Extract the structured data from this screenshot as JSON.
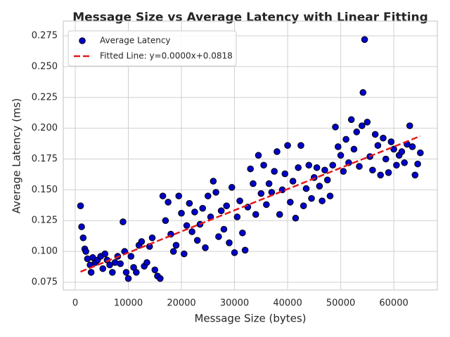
{
  "chart_data": {
    "type": "scatter",
    "title": "Message Size vs Average Latency with Linear Fitting",
    "x_label": "Message Size (bytes)",
    "y_label": "Average Latency (ms)",
    "xlim": [
      -2250,
      68200
    ],
    "ylim": [
      0.0687,
      0.287
    ],
    "xticks": [
      0,
      10000,
      20000,
      30000,
      40000,
      50000,
      60000
    ],
    "yticks": [
      0.075,
      {
        "value": 0.1,
        "label": "0.100"
      },
      0.125,
      {
        "value": 0.15,
        "label": "0.150"
      },
      0.175,
      {
        "value": 0.2,
        "label": "0.200"
      },
      0.225,
      {
        "value": 0.25,
        "label": "0.250"
      },
      0.275
    ],
    "grid": true,
    "legend": "upper left",
    "series": [
      {
        "name": "Average Latency",
        "type": "scatter",
        "color": "#0000cc",
        "x": [
          1000,
          1200,
          1500,
          1800,
          2000,
          2300,
          2800,
          3000,
          3300,
          3800,
          4200,
          4800,
          5200,
          5600,
          6000,
          6500,
          7000,
          7500,
          8000,
          8500,
          9000,
          9300,
          9600,
          10000,
          10500,
          11000,
          11500,
          12000,
          12500,
          13000,
          13500,
          14000,
          14500,
          15000,
          15500,
          16000,
          16500,
          17000,
          17500,
          18000,
          18500,
          19000,
          19500,
          20000,
          20500,
          21000,
          21500,
          22000,
          22500,
          23000,
          23500,
          24000,
          24500,
          25000,
          25500,
          26000,
          26500,
          27000,
          27500,
          28000,
          28500,
          29000,
          29500,
          30000,
          30500,
          31000,
          31500,
          32000,
          32500,
          33000,
          33500,
          34000,
          34500,
          35000,
          35500,
          36000,
          36500,
          37000,
          37500,
          38000,
          38500,
          39000,
          39500,
          40000,
          40500,
          41000,
          41500,
          42000,
          42500,
          43000,
          43500,
          44000,
          44500,
          45000,
          45500,
          46000,
          46500,
          47000,
          47500,
          48000,
          48500,
          49000,
          49500,
          50000,
          50500,
          51000,
          51500,
          52000,
          52500,
          53000,
          53500,
          54000,
          54200,
          54500,
          55000,
          55500,
          56000,
          56500,
          57000,
          57500,
          58000,
          58500,
          59000,
          59500,
          60000,
          60500,
          61000,
          61500,
          62000,
          62500,
          63000,
          63500,
          64000,
          64500,
          65000
        ],
        "values": [
          0.137,
          0.12,
          0.111,
          0.102,
          0.1,
          0.094,
          0.089,
          0.083,
          0.095,
          0.091,
          0.093,
          0.096,
          0.086,
          0.098,
          0.093,
          0.089,
          0.083,
          0.091,
          0.096,
          0.09,
          0.124,
          0.1,
          0.083,
          0.078,
          0.096,
          0.087,
          0.083,
          0.105,
          0.108,
          0.088,
          0.091,
          0.104,
          0.111,
          0.085,
          0.08,
          0.078,
          0.145,
          0.125,
          0.14,
          0.114,
          0.1,
          0.105,
          0.145,
          0.131,
          0.098,
          0.121,
          0.139,
          0.116,
          0.132,
          0.109,
          0.122,
          0.135,
          0.103,
          0.145,
          0.128,
          0.157,
          0.148,
          0.112,
          0.133,
          0.118,
          0.137,
          0.107,
          0.152,
          0.099,
          0.128,
          0.141,
          0.115,
          0.101,
          0.136,
          0.167,
          0.155,
          0.13,
          0.178,
          0.147,
          0.17,
          0.138,
          0.155,
          0.148,
          0.165,
          0.181,
          0.13,
          0.15,
          0.163,
          0.186,
          0.14,
          0.157,
          0.127,
          0.168,
          0.186,
          0.137,
          0.151,
          0.17,
          0.143,
          0.16,
          0.168,
          0.153,
          0.141,
          0.166,
          0.158,
          0.145,
          0.17,
          0.201,
          0.185,
          0.178,
          0.165,
          0.191,
          0.172,
          0.207,
          0.183,
          0.197,
          0.169,
          0.202,
          0.229,
          0.272,
          0.205,
          0.177,
          0.166,
          0.195,
          0.186,
          0.162,
          0.192,
          0.175,
          0.164,
          0.189,
          0.183,
          0.17,
          0.178,
          0.181,
          0.172,
          0.187,
          0.202,
          0.185,
          0.162,
          0.171,
          0.18
        ]
      },
      {
        "name": "Fitted Line: y=0.0000x+0.0818",
        "type": "line",
        "color": "#e31a1c",
        "x": [
          1000,
          65000
        ],
        "values": [
          0.0835,
          0.1936
        ]
      }
    ]
  }
}
